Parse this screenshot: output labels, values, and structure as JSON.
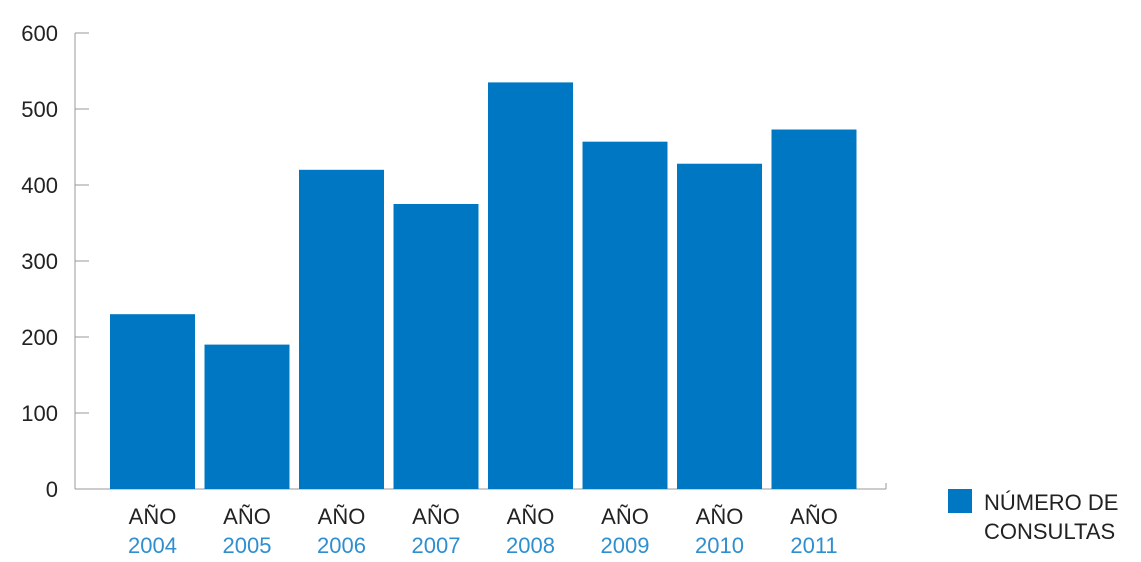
{
  "chart_data": {
    "type": "bar",
    "categories": [
      {
        "prefix": "AÑO",
        "year": "2004"
      },
      {
        "prefix": "AÑO",
        "year": "2005"
      },
      {
        "prefix": "AÑO",
        "year": "2006"
      },
      {
        "prefix": "AÑO",
        "year": "2007"
      },
      {
        "prefix": "AÑO",
        "year": "2008"
      },
      {
        "prefix": "AÑO",
        "year": "2009"
      },
      {
        "prefix": "AÑO",
        "year": "2010"
      },
      {
        "prefix": "AÑO",
        "year": "2011"
      }
    ],
    "series": [
      {
        "name": "NÚMERO DE CONSULTAS",
        "legend_lines": [
          "NÚMERO DE",
          "CONSULTAS"
        ],
        "color": "#0077c2",
        "values": [
          230,
          190,
          420,
          375,
          535,
          457,
          428,
          473
        ]
      }
    ],
    "y_ticks": [
      0,
      100,
      200,
      300,
      400,
      500,
      600
    ],
    "ylim": [
      0,
      600
    ],
    "grid": false,
    "legend_position": "bottom-right",
    "colors": {
      "bar": "#0077c2",
      "year_label": "#2e8fd0",
      "axis": "#999999",
      "text": "#222222"
    }
  }
}
